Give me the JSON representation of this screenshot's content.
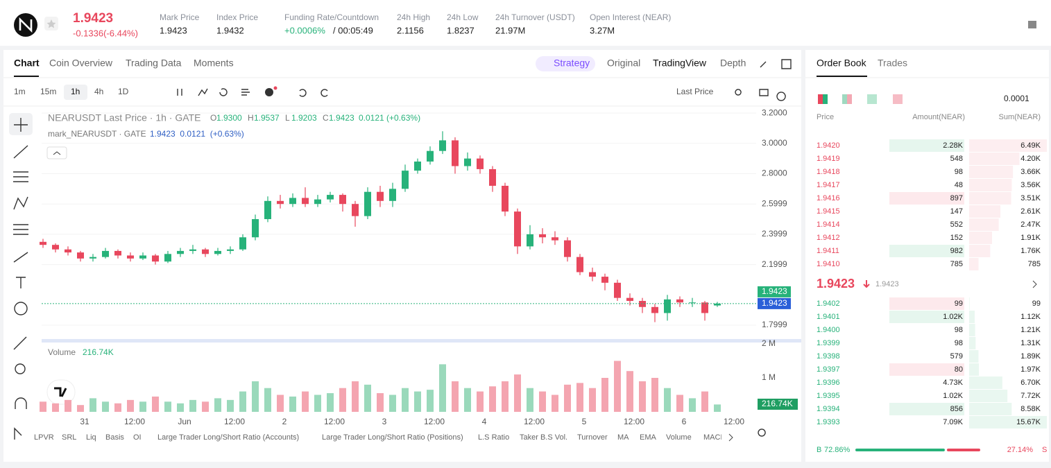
{
  "header": {
    "last_price": "1.9423",
    "change": "-0.1336(-6.44%)",
    "stats": [
      {
        "label": "Mark Price",
        "value": "1.9423"
      },
      {
        "label": "Index Price",
        "value": "1.9432"
      },
      {
        "label": "Funding Rate/Countdown",
        "value": "+0.0006%",
        "value2": "/ 00:05:49"
      },
      {
        "label": "24h High",
        "value": "2.1156"
      },
      {
        "label": "24h Low",
        "value": "1.8237"
      },
      {
        "label": "24h Turnover (USDT)",
        "value": "21.97M"
      },
      {
        "label": "Open Interest (NEAR)",
        "value": "3.27M"
      }
    ]
  },
  "tabs": {
    "left": [
      "Chart",
      "Coin Overview",
      "Trading Data",
      "Moments"
    ],
    "right": [
      "Strategy",
      "Original",
      "TradingView",
      "Depth"
    ]
  },
  "intervals": [
    "1m",
    "15m",
    "1h",
    "4h",
    "1D"
  ],
  "price_type": "Last Price",
  "chart_data": {
    "type": "candlestick",
    "title": "NEARUSDT Last Price · 1h · GATE",
    "ohlc": [
      {
        "key": "O",
        "value": "1.9300"
      },
      {
        "key": "H",
        "value": "1.9537"
      },
      {
        "key": "L",
        "value": "1.9203"
      },
      {
        "key": "C",
        "value": "1.9423"
      }
    ],
    "change": "0.0121 (+0.63%)",
    "subtitle": "mark_NEARUSDT · GATE",
    "mark_values": "1.9423  0.0121  (+0.63%)",
    "candles": [
      [
        2.35,
        2.37,
        2.31,
        2.33
      ],
      [
        2.33,
        2.34,
        2.28,
        2.3
      ],
      [
        2.3,
        2.32,
        2.26,
        2.28
      ],
      [
        2.28,
        2.29,
        2.22,
        2.24
      ],
      [
        2.24,
        2.27,
        2.22,
        2.25
      ],
      [
        2.25,
        2.31,
        2.24,
        2.29
      ],
      [
        2.29,
        2.3,
        2.24,
        2.26
      ],
      [
        2.26,
        2.28,
        2.22,
        2.24
      ],
      [
        2.24,
        2.28,
        2.23,
        2.26
      ],
      [
        2.26,
        2.27,
        2.2,
        2.22
      ],
      [
        2.22,
        2.29,
        2.21,
        2.27
      ],
      [
        2.27,
        2.31,
        2.25,
        2.29
      ],
      [
        2.29,
        2.33,
        2.27,
        2.3
      ],
      [
        2.3,
        2.31,
        2.25,
        2.27
      ],
      [
        2.27,
        2.31,
        2.26,
        2.29
      ],
      [
        2.29,
        2.32,
        2.27,
        2.3
      ],
      [
        2.3,
        2.4,
        2.29,
        2.38
      ],
      [
        2.38,
        2.53,
        2.36,
        2.5
      ],
      [
        2.5,
        2.65,
        2.48,
        2.62
      ],
      [
        2.62,
        2.66,
        2.57,
        2.6
      ],
      [
        2.6,
        2.67,
        2.58,
        2.64
      ],
      [
        2.64,
        2.71,
        2.58,
        2.6
      ],
      [
        2.6,
        2.66,
        2.58,
        2.63
      ],
      [
        2.63,
        2.68,
        2.61,
        2.66
      ],
      [
        2.66,
        2.67,
        2.55,
        2.6
      ],
      [
        2.6,
        2.62,
        2.45,
        2.52
      ],
      [
        2.52,
        2.71,
        2.5,
        2.68
      ],
      [
        2.68,
        2.72,
        2.58,
        2.62
      ],
      [
        2.62,
        2.74,
        2.58,
        2.7
      ],
      [
        2.7,
        2.86,
        2.68,
        2.82
      ],
      [
        2.82,
        2.9,
        2.8,
        2.88
      ],
      [
        2.88,
        2.98,
        2.86,
        2.95
      ],
      [
        2.95,
        3.08,
        2.93,
        3.02
      ],
      [
        3.02,
        3.04,
        2.8,
        2.85
      ],
      [
        2.85,
        2.94,
        2.82,
        2.9
      ],
      [
        2.9,
        2.92,
        2.8,
        2.83
      ],
      [
        2.83,
        2.85,
        2.68,
        2.72
      ],
      [
        2.72,
        2.74,
        2.52,
        2.55
      ],
      [
        2.55,
        2.57,
        2.27,
        2.32
      ],
      [
        2.32,
        2.46,
        2.3,
        2.4
      ],
      [
        2.4,
        2.44,
        2.34,
        2.38
      ],
      [
        2.38,
        2.42,
        2.33,
        2.36
      ],
      [
        2.36,
        2.38,
        2.22,
        2.25
      ],
      [
        2.25,
        2.27,
        2.13,
        2.15
      ],
      [
        2.15,
        2.18,
        2.09,
        2.12
      ],
      [
        2.12,
        2.14,
        2.03,
        2.08
      ],
      [
        2.08,
        2.1,
        1.96,
        1.98
      ],
      [
        1.98,
        2.01,
        1.93,
        1.96
      ],
      [
        1.96,
        1.98,
        1.88,
        1.92
      ],
      [
        1.92,
        1.94,
        1.82,
        1.88
      ],
      [
        1.88,
        2.0,
        1.83,
        1.97
      ],
      [
        1.97,
        1.99,
        1.92,
        1.95
      ],
      [
        1.95,
        1.98,
        1.92,
        1.95
      ],
      [
        1.95,
        1.96,
        1.83,
        1.88
      ],
      [
        1.93,
        1.9537,
        1.9203,
        1.9423
      ]
    ],
    "ylim": [
      1.713,
      3.237
    ],
    "yticks": [
      {
        "value": 3.2,
        "label": "3.2000"
      },
      {
        "value": 3.0,
        "label": "3.0000"
      },
      {
        "value": 2.8,
        "label": "2.8000"
      },
      2.5999,
      2.3999,
      2.1999,
      1.7999
    ],
    "last_price": 1.9423,
    "mark_price": 1.9423,
    "xticks": [
      "31",
      "12:00",
      "Jun",
      "12:00",
      "2",
      "12:00",
      "3",
      "12:00",
      "4",
      "12:00",
      "5",
      "12:00",
      "6",
      "12:00"
    ],
    "volume": {
      "label": "Volume",
      "current": "216.74K",
      "values": [
        300000,
        250000,
        350000,
        200000,
        400000,
        300000,
        250000,
        350000,
        300000,
        450000,
        300000,
        250000,
        350000,
        300000,
        400000,
        350000,
        600000,
        900000,
        700000,
        500000,
        450000,
        600000,
        500000,
        550000,
        700000,
        900000,
        800000,
        550000,
        500000,
        700000,
        600000,
        650000,
        1400000,
        900000,
        700000,
        600000,
        750000,
        900000,
        1100000,
        700000,
        600000,
        500000,
        800000,
        850000,
        700000,
        1000000,
        1500000,
        1200000,
        900000,
        1000000,
        700000,
        500000,
        400000,
        600000,
        216740
      ],
      "ylim": [
        0,
        2000000
      ],
      "yticks": [
        {
          "value": 2000000,
          "label": "2 M"
        },
        {
          "value": 1000000,
          "label": "1 M"
        }
      ]
    }
  },
  "indicators": [
    "LPVR",
    "SRL",
    "Liq",
    "Basis",
    "OI",
    "Large Trader Long/Short Ratio (Accounts)",
    "Large Trader Long/Short Ratio (Positions)",
    "L.S Ratio",
    "Taker B.S Vol.",
    "Turnover",
    "MA",
    "EMA",
    "Volume",
    "MACD"
  ],
  "order_book": {
    "tabs": [
      "Order Book",
      "Trades"
    ],
    "precision": "0.0001",
    "columns": [
      "Price",
      "Amount(NEAR)",
      "Sum(NEAR)"
    ],
    "asks": {
      "prices": [
        "1.9420",
        "1.9419",
        "1.9418",
        "1.9417",
        "1.9416",
        "1.9415",
        "1.9414",
        "1.9412",
        "1.9411",
        "1.9410"
      ],
      "amounts": [
        "2.28K",
        "548",
        "98",
        "48",
        "897",
        "147",
        "552",
        "152",
        "982",
        "785"
      ],
      "sums": [
        6490,
        4200,
        3660,
        3560,
        3510,
        2610,
        2470,
        1910,
        1760,
        785
      ],
      "value_labels": [
        "6.49K",
        "4.20K",
        "3.66K",
        "3.56K",
        "3.51K",
        "2.61K",
        "2.47K",
        "1.91K",
        "1.76K",
        "785"
      ]
    },
    "mid_price": "1.9423",
    "mark_price": "1.9423",
    "bids": {
      "prices": [
        "1.9402",
        "1.9401",
        "1.9400",
        "1.9399",
        "1.9398",
        "1.9397",
        "1.9396",
        "1.9395",
        "1.9394",
        "1.9393"
      ],
      "amounts": [
        "99",
        "1.02K",
        "98",
        "98",
        "579",
        "80",
        "4.73K",
        "1.02K",
        "856",
        "7.09K"
      ],
      "sums": [
        99,
        1120,
        1210,
        1310,
        1890,
        1970,
        6700,
        7720,
        8580,
        15670
      ],
      "value_labels": [
        "99",
        "1.12K",
        "1.21K",
        "1.31K",
        "1.89K",
        "1.97K",
        "6.70K",
        "7.72K",
        "8.58K",
        "15.67K"
      ]
    },
    "ratio": {
      "buy_key": "B",
      "buy": 72.86,
      "buy_label": "72.86%",
      "sell_key": "S",
      "sell": 27.14,
      "sell_label": "27.14%"
    }
  }
}
